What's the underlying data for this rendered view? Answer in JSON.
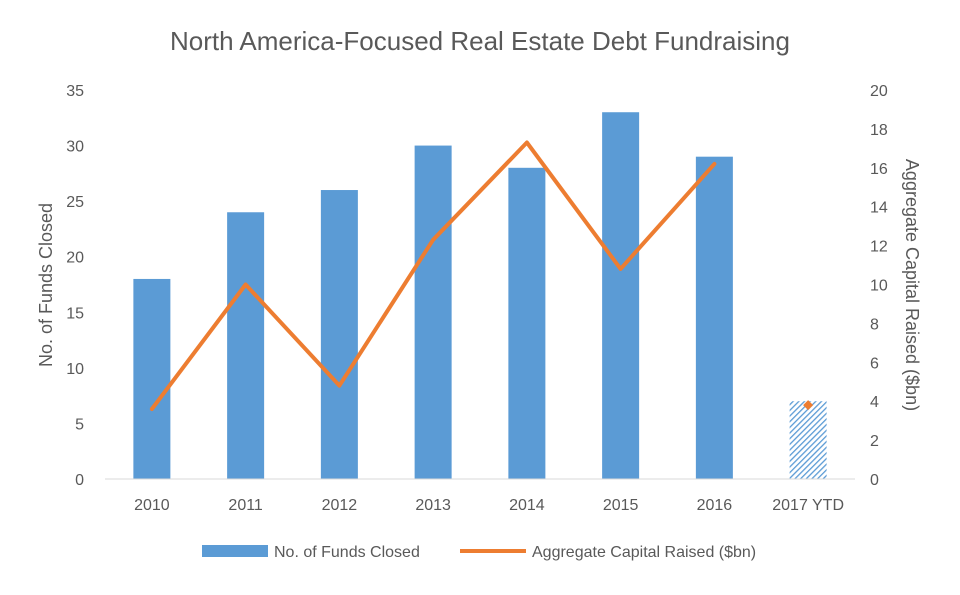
{
  "chart_data": {
    "type": "bar",
    "title": "North America-Focused Real Estate Debt Fundraising",
    "categories": [
      "2010",
      "2011",
      "2012",
      "2013",
      "2014",
      "2015",
      "2016",
      "2017 YTD"
    ],
    "series": [
      {
        "name": "No. of Funds Closed",
        "type": "bar",
        "axis": "left",
        "values": [
          18,
          24,
          26,
          30,
          28,
          33,
          29,
          7
        ],
        "color": "#5B9BD5"
      },
      {
        "name": "Aggregate Capital Raised ($bn)",
        "type": "line",
        "axis": "right",
        "values": [
          3.6,
          10.0,
          4.8,
          12.3,
          17.3,
          10.8,
          16.2,
          3.8
        ],
        "color": "#ED7D31"
      }
    ],
    "ylabel": "No. of Funds Closed",
    "ylim": [
      0,
      35
    ],
    "yticks": [
      "0",
      "5",
      "10",
      "15",
      "20",
      "25",
      "30",
      "35"
    ],
    "y2label": "Aggregate Capital Raised ($bn)",
    "y2lim": [
      0,
      20
    ],
    "y2ticks": [
      "0",
      "2",
      "4",
      "6",
      "8",
      "10",
      "12",
      "14",
      "16",
      "18",
      "20"
    ],
    "legend": "bottom",
    "grid": false,
    "last_category_partial": true
  }
}
